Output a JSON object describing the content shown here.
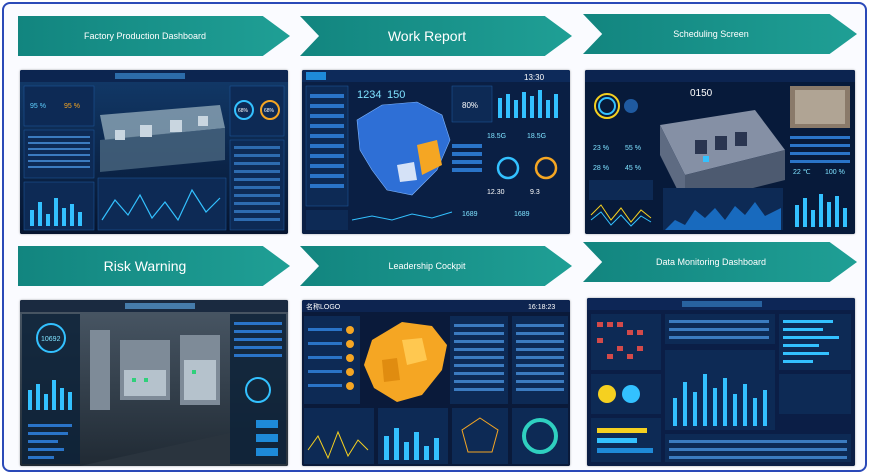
{
  "banners": [
    {
      "label": "Factory Production Dashboard"
    },
    {
      "label": "Work Report"
    },
    {
      "label": "Scheduling Screen"
    },
    {
      "label": "Risk Warning"
    },
    {
      "label": "Leadership Cockpit"
    },
    {
      "label": "Data Monitoring Dashboard"
    }
  ],
  "thumbs": {
    "factory": {
      "stat1": "95 %",
      "stat2": "95 %",
      "gauge1": "68%",
      "gauge2": "68%"
    },
    "work": {
      "big1": "1234",
      "big2": "150",
      "pct": "80%",
      "clock": "13:30",
      "n1": "18.5G",
      "n2": "18.5G",
      "n3": "12.30",
      "n4": "9.3",
      "n5": "1689",
      "n6": "1689"
    },
    "sched": {
      "clock": "0150",
      "p1": "23 %",
      "p2": "55 %",
      "p3": "28 %",
      "p4": "45 %",
      "p5": "22 ℃",
      "p6": "100 %"
    },
    "risk": {
      "gauge": "10692"
    },
    "cockpit": {
      "logo": "名称LOGO",
      "clock": "16:18:23"
    },
    "monitor": {}
  },
  "colors": {
    "banner": "#17948b",
    "frame": "#2a49b8",
    "screen_bg": "#0a1a3a",
    "accent_cyan": "#33d4ff",
    "accent_orange": "#f5a623"
  }
}
